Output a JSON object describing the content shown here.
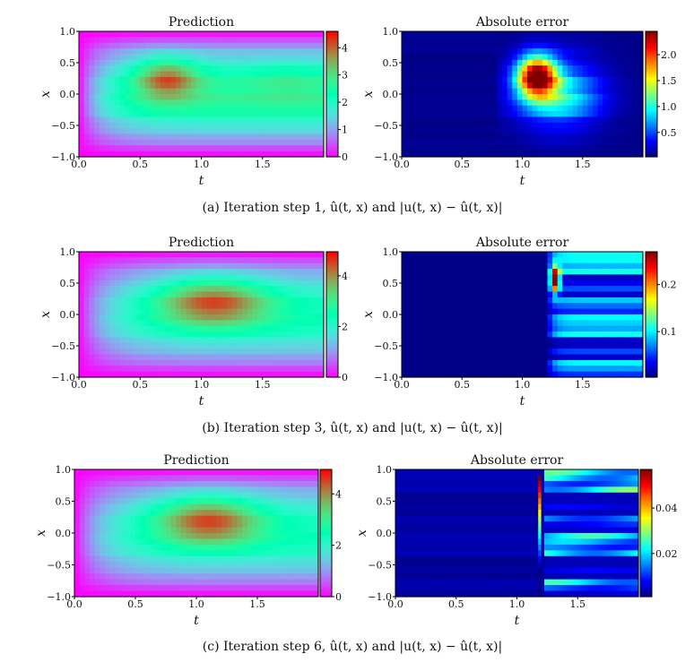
{
  "chart_data": [
    {
      "type": "heatmap",
      "panel": "a-left",
      "title": "Prediction",
      "xlabel": "t",
      "ylabel": "x",
      "xlim": [
        0,
        2
      ],
      "ylim": [
        -1,
        1
      ],
      "xticks": [
        "0.0",
        "0.5",
        "1.0",
        "1.5"
      ],
      "yticks": [
        "1.0",
        "0.5",
        "0.0",
        "−0.5",
        "−1.0"
      ],
      "colormap": "rainbow",
      "crange": [
        0,
        4.6
      ],
      "cticks": [
        0,
        1,
        2,
        3,
        4
      ],
      "ctick_labels": [
        "0",
        "1",
        "2",
        "3",
        "4"
      ],
      "field": "pred1"
    },
    {
      "type": "heatmap",
      "panel": "a-right",
      "title": "Absolute error",
      "xlabel": "t",
      "ylabel": "x",
      "xlim": [
        0,
        2
      ],
      "ylim": [
        -1,
        1
      ],
      "xticks": [
        "0.0",
        "0.5",
        "1.0",
        "1.5"
      ],
      "yticks": [
        "1.0",
        "0.5",
        "0.0",
        "−0.5",
        "−1.0"
      ],
      "colormap": "jet",
      "crange": [
        0.03,
        2.45
      ],
      "cticks": [
        0.5,
        1.0,
        1.5,
        2.0
      ],
      "ctick_labels": [
        "0.5",
        "1.0",
        "1.5",
        "2.0"
      ],
      "field": "err1"
    },
    {
      "type": "heatmap",
      "panel": "b-left",
      "title": "Prediction",
      "xlabel": "t",
      "ylabel": "x",
      "xlim": [
        0,
        2
      ],
      "ylim": [
        -1,
        1
      ],
      "xticks": [
        "0.0",
        "0.5",
        "1.0",
        "1.5"
      ],
      "yticks": [
        "1.0",
        "0.5",
        "0.0",
        "−0.5",
        "−1.0"
      ],
      "colormap": "rainbow",
      "crange": [
        0,
        4.95
      ],
      "cticks": [
        0,
        2,
        4
      ],
      "ctick_labels": [
        "0",
        "2",
        "4"
      ],
      "field": "pred3"
    },
    {
      "type": "heatmap",
      "panel": "b-right",
      "title": "Absolute error",
      "xlabel": "t",
      "ylabel": "x",
      "xlim": [
        0,
        2
      ],
      "ylim": [
        -1,
        1
      ],
      "xticks": [
        "0.0",
        "0.5",
        "1.0",
        "1.5"
      ],
      "yticks": [
        "1.0",
        "0.5",
        "0.0",
        "−0.5",
        "−1.0"
      ],
      "colormap": "jet",
      "crange": [
        0.003,
        0.27
      ],
      "cticks": [
        0.1,
        0.2
      ],
      "ctick_labels": [
        "0.1",
        "0.2"
      ],
      "field": "err3"
    },
    {
      "type": "heatmap",
      "panel": "c-left",
      "title": "Prediction",
      "xlabel": "t",
      "ylabel": "x",
      "xlim": [
        0,
        2
      ],
      "ylim": [
        -1,
        1
      ],
      "xticks": [
        "0.0",
        "0.5",
        "1.0",
        "1.5"
      ],
      "yticks": [
        "1.0",
        "0.5",
        "0.0",
        "−0.5",
        "−1.0"
      ],
      "colormap": "rainbow",
      "crange": [
        0,
        4.95
      ],
      "cticks": [
        0,
        2,
        4
      ],
      "ctick_labels": [
        "0",
        "2",
        "4"
      ],
      "field": "pred6"
    },
    {
      "type": "heatmap",
      "panel": "c-right",
      "title": "Absolute error",
      "xlabel": "t",
      "ylabel": "x",
      "xlim": [
        0,
        2
      ],
      "ylim": [
        -1,
        1
      ],
      "xticks": [
        "0.0",
        "0.5",
        "1.0",
        "1.5"
      ],
      "yticks": [
        "1.0",
        "0.5",
        "0.0",
        "−0.5",
        "−1.0"
      ],
      "colormap": "jet",
      "crange": [
        0.001,
        0.057
      ],
      "cticks": [
        0.02,
        0.04
      ],
      "ctick_labels": [
        "0.02",
        "0.04"
      ],
      "field": "err6"
    }
  ],
  "captions": [
    "(a) Iteration step 1, û(t, x) and |u(t, x) − û(t, x)|",
    "(b) Iteration step 3, û(t, x) and |u(t, x) − û(t, x)|",
    "(c) Iteration step 6, û(t, x) and |u(t, x) − û(t, x)|"
  ]
}
